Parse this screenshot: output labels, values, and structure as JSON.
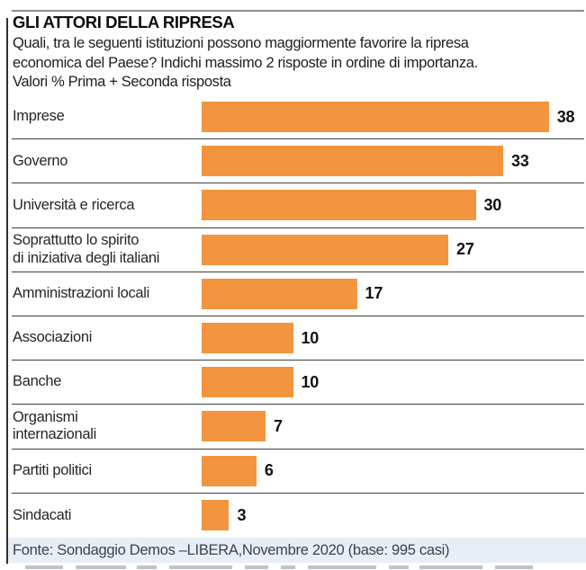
{
  "header": {
    "title": "GLI ATTORI DELLA RIPRESA",
    "subtitle": "Quali, tra le seguenti istituzioni possono maggiormente favorire la ripresa\neconomica del Paese? Indichi massimo 2 risposte in ordine di importanza.\nValori % Prima + Seconda risposta"
  },
  "chart_data": {
    "type": "bar",
    "orientation": "horizontal",
    "title": "GLI ATTORI DELLA RIPRESA",
    "categories": [
      "Imprese",
      "Governo",
      "Università e ricerca",
      "Soprattutto lo spirito\ndi iniziativa degli italiani",
      "Amministrazioni locali",
      "Associazioni",
      "Banche",
      "Organismi\ninternazionali",
      "Partiti politici",
      "Sindacati"
    ],
    "values": [
      38,
      33,
      30,
      27,
      17,
      10,
      10,
      7,
      6,
      3
    ],
    "unit": "%",
    "xlim": [
      0,
      40
    ],
    "grid": false,
    "legend": false,
    "data_labels": true
  },
  "colors": {
    "bar": "#F3953E",
    "separator": "#3f3f3f",
    "footer_bg": "#E8EEF5"
  },
  "footer": {
    "source": "Fonte: Sondaggio Demos –LIBERA,Novembre 2020 (base: 995 casi)"
  }
}
